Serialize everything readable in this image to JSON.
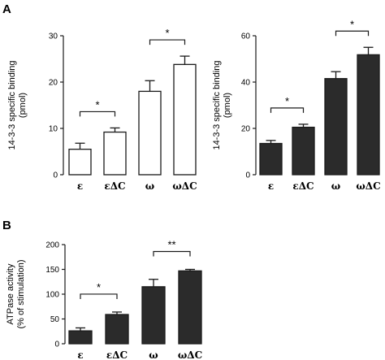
{
  "panels": [
    {
      "letter": "A"
    },
    {
      "letter": "B"
    }
  ],
  "chart_data": [
    {
      "type": "bar",
      "panel": "A",
      "categories": [
        "ε",
        "εΔC",
        "ω",
        "ωΔC"
      ],
      "values": [
        5.5,
        9.2,
        18.0,
        23.8
      ],
      "errors": [
        1.3,
        0.9,
        2.3,
        1.8
      ],
      "bar_fill": "#ffffff",
      "bar_stroke": "#1a1a1a",
      "ylabel_line1": "14-3-3 specific binding",
      "ylabel_line2": "(pmol)",
      "ylim": [
        0,
        30
      ],
      "yticks": [
        0,
        10,
        20,
        30
      ],
      "significance": [
        {
          "from": 0,
          "to": 1,
          "label": "*"
        },
        {
          "from": 2,
          "to": 3,
          "label": "*"
        }
      ]
    },
    {
      "type": "bar",
      "panel": "A",
      "categories": [
        "ε",
        "εΔC",
        "ω",
        "ωΔC"
      ],
      "values": [
        13.5,
        20.5,
        41.5,
        51.8
      ],
      "errors": [
        1.3,
        1.3,
        3.0,
        3.2
      ],
      "bar_fill": "#2b2b2b",
      "bar_stroke": "#1a1a1a",
      "ylabel_line1": "14-3-3 specific binding",
      "ylabel_line2": "(pmol)",
      "ylim": [
        0,
        60
      ],
      "yticks": [
        0,
        20,
        40,
        60
      ],
      "significance": [
        {
          "from": 0,
          "to": 1,
          "label": "*"
        },
        {
          "from": 2,
          "to": 3,
          "label": "*"
        }
      ]
    },
    {
      "type": "bar",
      "panel": "B",
      "categories": [
        "ε",
        "εΔC",
        "ω",
        "ωΔC"
      ],
      "values": [
        26,
        59,
        115,
        147
      ],
      "errors": [
        6,
        5,
        15,
        3
      ],
      "bar_fill": "#2b2b2b",
      "bar_stroke": "#1a1a1a",
      "ylabel_line1": "ATPase activity",
      "ylabel_line2": "(% of stimulation)",
      "ylim": [
        0,
        200
      ],
      "yticks": [
        0,
        50,
        100,
        150,
        200
      ],
      "significance": [
        {
          "from": 0,
          "to": 1,
          "label": "*"
        },
        {
          "from": 2,
          "to": 3,
          "label": "**"
        }
      ]
    }
  ]
}
